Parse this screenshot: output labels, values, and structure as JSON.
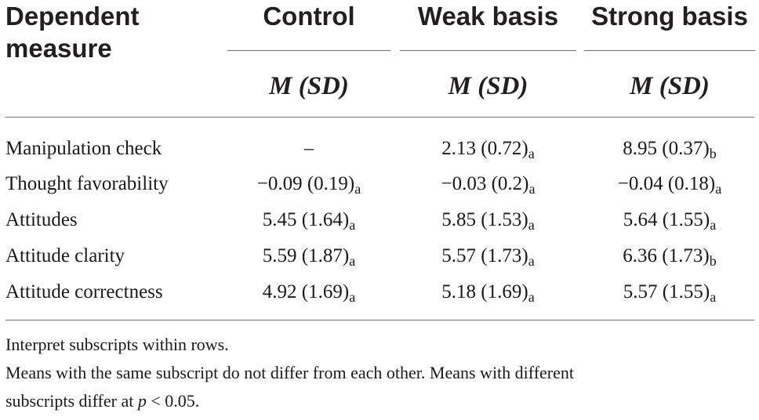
{
  "header": {
    "dependent_line1": "Dependent",
    "dependent_line2": "measure",
    "columns": [
      {
        "label": "Control",
        "stat": "M (SD)"
      },
      {
        "label": "Weak basis",
        "stat": "M (SD)"
      },
      {
        "label": "Strong basis",
        "stat": "M (SD)"
      }
    ]
  },
  "rows": [
    {
      "label": "Manipulation check",
      "cells": [
        {
          "value": "–",
          "sub": ""
        },
        {
          "value": "2.13 (0.72)",
          "sub": "a"
        },
        {
          "value": "8.95 (0.37)",
          "sub": "b"
        }
      ]
    },
    {
      "label": "Thought favorability",
      "cells": [
        {
          "value": "−0.09 (0.19)",
          "sub": "a"
        },
        {
          "value": "−0.03 (0.2)",
          "sub": "a"
        },
        {
          "value": "−0.04 (0.18)",
          "sub": "a"
        }
      ]
    },
    {
      "label": "Attitudes",
      "cells": [
        {
          "value": "5.45 (1.64)",
          "sub": "a"
        },
        {
          "value": "5.85 (1.53)",
          "sub": "a"
        },
        {
          "value": "5.64 (1.55)",
          "sub": "a"
        }
      ]
    },
    {
      "label": "Attitude clarity",
      "cells": [
        {
          "value": "5.59 (1.87)",
          "sub": "a"
        },
        {
          "value": "5.57 (1.73)",
          "sub": "a"
        },
        {
          "value": "6.36 (1.73)",
          "sub": "b"
        }
      ]
    },
    {
      "label": "Attitude correctness",
      "cells": [
        {
          "value": "4.92 (1.69)",
          "sub": "a"
        },
        {
          "value": "5.18 (1.69)",
          "sub": "a"
        },
        {
          "value": "5.57 (1.55)",
          "sub": "a"
        }
      ]
    }
  ],
  "notes": {
    "line1": "Interpret subscripts within rows.",
    "line2": "Means with the same subscript do not differ from each other. Means with different",
    "line3_prefix": "subscripts differ at ",
    "line3_p": "p",
    "line3_suffix": " < 0.05."
  }
}
